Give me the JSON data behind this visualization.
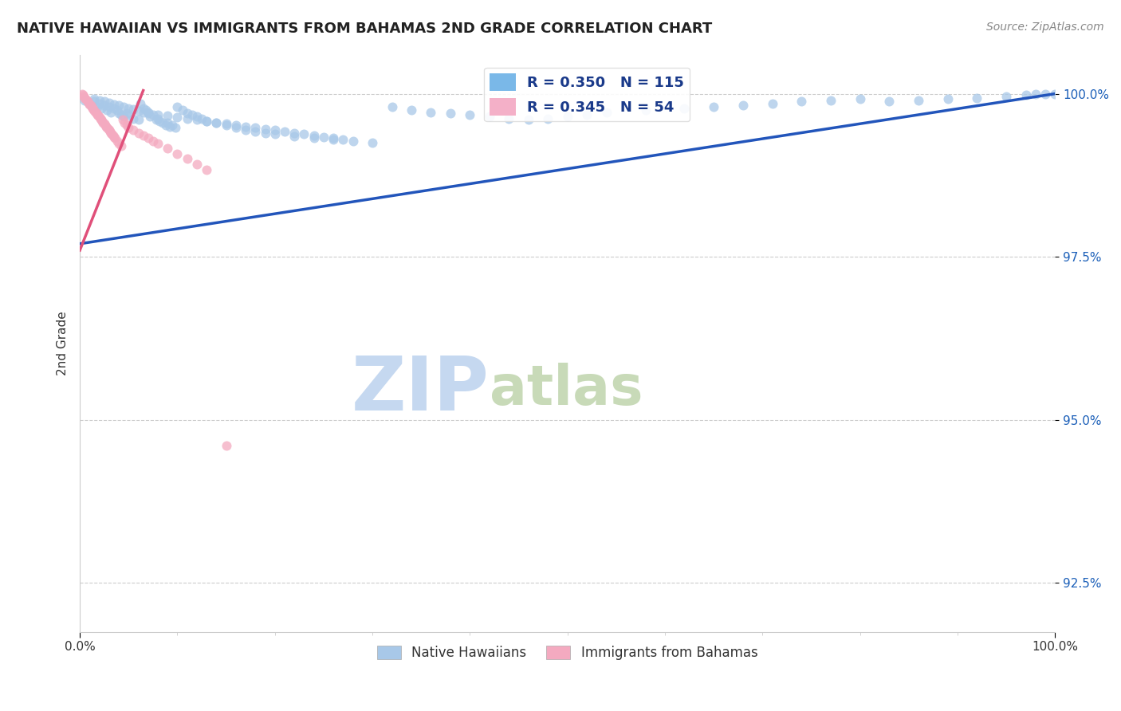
{
  "title": "NATIVE HAWAIIAN VS IMMIGRANTS FROM BAHAMAS 2ND GRADE CORRELATION CHART",
  "source": "Source: ZipAtlas.com",
  "ylabel": "2nd Grade",
  "xmin": 0.0,
  "xmax": 1.0,
  "ymin": 0.9175,
  "ymax": 1.006,
  "yticks": [
    0.925,
    0.95,
    0.975,
    1.0
  ],
  "ytick_labels": [
    "92.5%",
    "95.0%",
    "97.5%",
    "100.0%"
  ],
  "xtick_labels": [
    "0.0%",
    "100.0%"
  ],
  "watermark_zip": "ZIP",
  "watermark_atlas": "atlas",
  "watermark_color_zip": "#c5d8f0",
  "watermark_color_atlas": "#c8dab8",
  "blue_line_color": "#2255bb",
  "pink_line_color": "#e0507a",
  "blue_dot_color": "#a8c8e8",
  "pink_dot_color": "#f4aac0",
  "dot_size": 75,
  "dot_alpha": 0.75,
  "grid_color": "#cccccc",
  "bg_color": "#ffffff",
  "title_fontsize": 13,
  "axis_label_fontsize": 11,
  "tick_fontsize": 11,
  "source_fontsize": 10,
  "blue_scatter_x": [
    0.005,
    0.01,
    0.012,
    0.015,
    0.018,
    0.02,
    0.022,
    0.025,
    0.028,
    0.03,
    0.032,
    0.035,
    0.038,
    0.04,
    0.042,
    0.045,
    0.048,
    0.05,
    0.055,
    0.06,
    0.062,
    0.065,
    0.068,
    0.07,
    0.072,
    0.075,
    0.078,
    0.08,
    0.082,
    0.085,
    0.088,
    0.09,
    0.092,
    0.095,
    0.098,
    0.1,
    0.105,
    0.11,
    0.115,
    0.12,
    0.125,
    0.13,
    0.14,
    0.15,
    0.16,
    0.17,
    0.18,
    0.19,
    0.2,
    0.22,
    0.24,
    0.26,
    0.28,
    0.3,
    0.32,
    0.34,
    0.36,
    0.38,
    0.4,
    0.42,
    0.44,
    0.46,
    0.48,
    0.5,
    0.52,
    0.54,
    0.58,
    0.62,
    0.65,
    0.68,
    0.71,
    0.74,
    0.77,
    0.8,
    0.83,
    0.86,
    0.89,
    0.92,
    0.95,
    0.97,
    0.98,
    0.99,
    1.0,
    0.015,
    0.02,
    0.025,
    0.03,
    0.035,
    0.04,
    0.045,
    0.05,
    0.055,
    0.06,
    0.065,
    0.07,
    0.08,
    0.09,
    0.1,
    0.11,
    0.12,
    0.13,
    0.14,
    0.15,
    0.16,
    0.17,
    0.18,
    0.19,
    0.2,
    0.21,
    0.22,
    0.23,
    0.24,
    0.25,
    0.26,
    0.27
  ],
  "blue_scatter_y": [
    0.999,
    0.9985,
    0.9982,
    0.9988,
    0.998,
    0.9985,
    0.9978,
    0.9982,
    0.9975,
    0.998,
    0.9972,
    0.9978,
    0.9975,
    0.997,
    0.9968,
    0.9965,
    0.997,
    0.9968,
    0.9962,
    0.996,
    0.9985,
    0.9978,
    0.9975,
    0.9972,
    0.9965,
    0.9968,
    0.996,
    0.9962,
    0.9958,
    0.9955,
    0.9952,
    0.9955,
    0.995,
    0.9952,
    0.9948,
    0.998,
    0.9975,
    0.997,
    0.9968,
    0.9965,
    0.9962,
    0.9958,
    0.9955,
    0.9952,
    0.9948,
    0.9945,
    0.9942,
    0.994,
    0.9938,
    0.9935,
    0.9932,
    0.993,
    0.9928,
    0.9925,
    0.998,
    0.9975,
    0.9972,
    0.997,
    0.9968,
    0.9965,
    0.9962,
    0.996,
    0.9962,
    0.9965,
    0.9968,
    0.9972,
    0.9975,
    0.9978,
    0.998,
    0.9982,
    0.9985,
    0.9988,
    0.999,
    0.9992,
    0.9988,
    0.999,
    0.9992,
    0.9994,
    0.9996,
    0.9998,
    0.9999,
    1.0,
    1.0,
    0.9992,
    0.999,
    0.9988,
    0.9986,
    0.9984,
    0.9982,
    0.998,
    0.9978,
    0.9976,
    0.9974,
    0.9972,
    0.997,
    0.9968,
    0.9966,
    0.9964,
    0.9962,
    0.996,
    0.9958,
    0.9956,
    0.9954,
    0.9952,
    0.995,
    0.9948,
    0.9946,
    0.9944,
    0.9942,
    0.994,
    0.9938,
    0.9936,
    0.9934,
    0.9932,
    0.993
  ],
  "pink_scatter_x": [
    0.002,
    0.003,
    0.004,
    0.005,
    0.006,
    0.007,
    0.008,
    0.009,
    0.01,
    0.011,
    0.012,
    0.013,
    0.014,
    0.015,
    0.016,
    0.017,
    0.018,
    0.019,
    0.02,
    0.021,
    0.022,
    0.023,
    0.024,
    0.025,
    0.026,
    0.027,
    0.028,
    0.029,
    0.03,
    0.031,
    0.032,
    0.033,
    0.034,
    0.035,
    0.036,
    0.038,
    0.04,
    0.042,
    0.044,
    0.046,
    0.048,
    0.05,
    0.055,
    0.06,
    0.065,
    0.07,
    0.075,
    0.08,
    0.09,
    0.1,
    0.11,
    0.12,
    0.13,
    0.15
  ],
  "pink_scatter_y": [
    1.0,
    0.9998,
    0.9996,
    0.9994,
    0.9992,
    0.999,
    0.9988,
    0.9986,
    0.9984,
    0.9982,
    0.998,
    0.9978,
    0.9976,
    0.9974,
    0.9972,
    0.997,
    0.9968,
    0.9966,
    0.9964,
    0.9962,
    0.996,
    0.9958,
    0.9956,
    0.9954,
    0.9952,
    0.995,
    0.9948,
    0.9946,
    0.9944,
    0.9942,
    0.994,
    0.9938,
    0.9936,
    0.9934,
    0.9932,
    0.9928,
    0.9924,
    0.992,
    0.996,
    0.9956,
    0.9952,
    0.9948,
    0.9944,
    0.994,
    0.9936,
    0.9932,
    0.9928,
    0.9924,
    0.9916,
    0.9908,
    0.99,
    0.9892,
    0.9884,
    0.946
  ]
}
